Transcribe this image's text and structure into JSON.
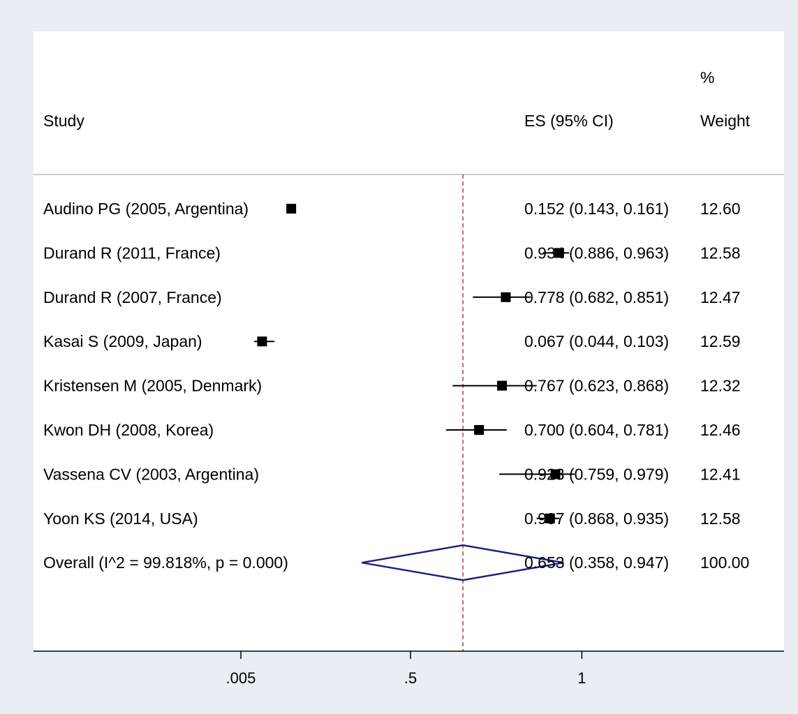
{
  "chart_data": {
    "type": "forest",
    "columns": {
      "study": "Study",
      "es": "ES (95% CI)",
      "weight_line1": "%",
      "weight_line2": "Weight"
    },
    "x_ticks": [
      {
        "value": 0.005,
        "label": ".005"
      },
      {
        "value": 0.5,
        "label": ".5"
      },
      {
        "value": 1,
        "label": "1"
      }
    ],
    "xlim": [
      -0.6,
      1.59
    ],
    "reference_line": 0.653,
    "studies": [
      {
        "label": "Audino PG (2005, Argentina)",
        "es": 0.152,
        "lo": 0.143,
        "hi": 0.161,
        "ci_text": "0.152 (0.143, 0.161)",
        "weight": "12.60"
      },
      {
        "label": "Durand R (2011, France)",
        "es": 0.934,
        "lo": 0.886,
        "hi": 0.963,
        "ci_text": "0.934 (0.886, 0.963)",
        "weight": "12.58"
      },
      {
        "label": "Durand R (2007, France)",
        "es": 0.778,
        "lo": 0.682,
        "hi": 0.851,
        "ci_text": "0.778 (0.682, 0.851)",
        "weight": "12.47"
      },
      {
        "label": "Kasai S (2009, Japan)",
        "es": 0.067,
        "lo": 0.044,
        "hi": 0.103,
        "ci_text": "0.067 (0.044, 0.103)",
        "weight": "12.59"
      },
      {
        "label": "Kristensen M (2005, Denmark)",
        "es": 0.767,
        "lo": 0.623,
        "hi": 0.868,
        "ci_text": "0.767 (0.623, 0.868)",
        "weight": "12.32"
      },
      {
        "label": "Kwon DH (2008, Korea)",
        "es": 0.7,
        "lo": 0.604,
        "hi": 0.781,
        "ci_text": "0.700 (0.604, 0.781)",
        "weight": "12.46"
      },
      {
        "label": "Vassena CV (2003, Argentina)",
        "es": 0.923,
        "lo": 0.759,
        "hi": 0.979,
        "ci_text": "0.923 (0.759, 0.979)",
        "weight": "12.41"
      },
      {
        "label": "Yoon KS (2014, USA)",
        "es": 0.907,
        "lo": 0.868,
        "hi": 0.935,
        "ci_text": "0.907 (0.868, 0.935)",
        "weight": "12.58"
      }
    ],
    "overall": {
      "label": "Overall  (I^2 = 99.818%, p = 0.000)",
      "es": 0.653,
      "lo": 0.358,
      "hi": 0.947,
      "ci_text": "0.653 (0.358, 0.947)",
      "weight": "100.00"
    },
    "colors": {
      "background": "#e8eef3",
      "panel": "#ffffff",
      "marker": "#000000",
      "diamond": "#1a237e",
      "reference_line": "#b22222",
      "separator": "#bbbbbb"
    }
  }
}
